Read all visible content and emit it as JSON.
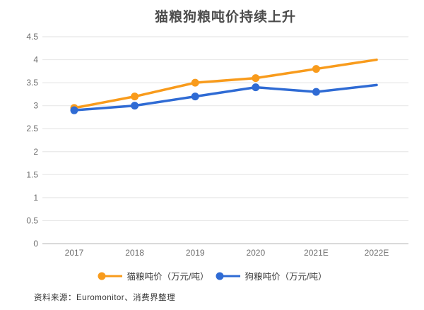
{
  "title": "猫粮狗粮吨价持续上升",
  "source": "资料来源：Euromonitor、消费界整理",
  "colors": {
    "cat_series": "#F89B1C",
    "dog_series": "#2F6BD4",
    "gridline": "#E8E8E8",
    "baseline": "#C4C4C4",
    "axis_text": "#6E6E6E"
  },
  "chart_data": {
    "type": "line",
    "title": "猫粮狗粮吨价持续上升",
    "categories": [
      "2017",
      "2018",
      "2019",
      "2020",
      "2021E",
      "2022E"
    ],
    "series": [
      {
        "name": "猫粮吨价（万元/吨）",
        "key": "cat",
        "color": "#F89B1C",
        "values": [
          2.95,
          3.2,
          3.5,
          3.6,
          3.8,
          4.0
        ]
      },
      {
        "name": "狗粮吨价（万元/吨）",
        "key": "dog",
        "color": "#2F6BD4",
        "values": [
          2.9,
          3.0,
          3.2,
          3.4,
          3.3,
          3.45
        ]
      }
    ],
    "xlabel": "",
    "ylabel": "",
    "ylim": [
      0,
      4.5
    ],
    "y_tick_labels": [
      "0",
      "0.5",
      "1",
      "1.5",
      "2",
      "2.5",
      "3",
      "3.5",
      "4",
      "4.5"
    ],
    "grid": true,
    "legend_position": "bottom",
    "marker_style": "filled-dot-on-all-points-except-last"
  }
}
